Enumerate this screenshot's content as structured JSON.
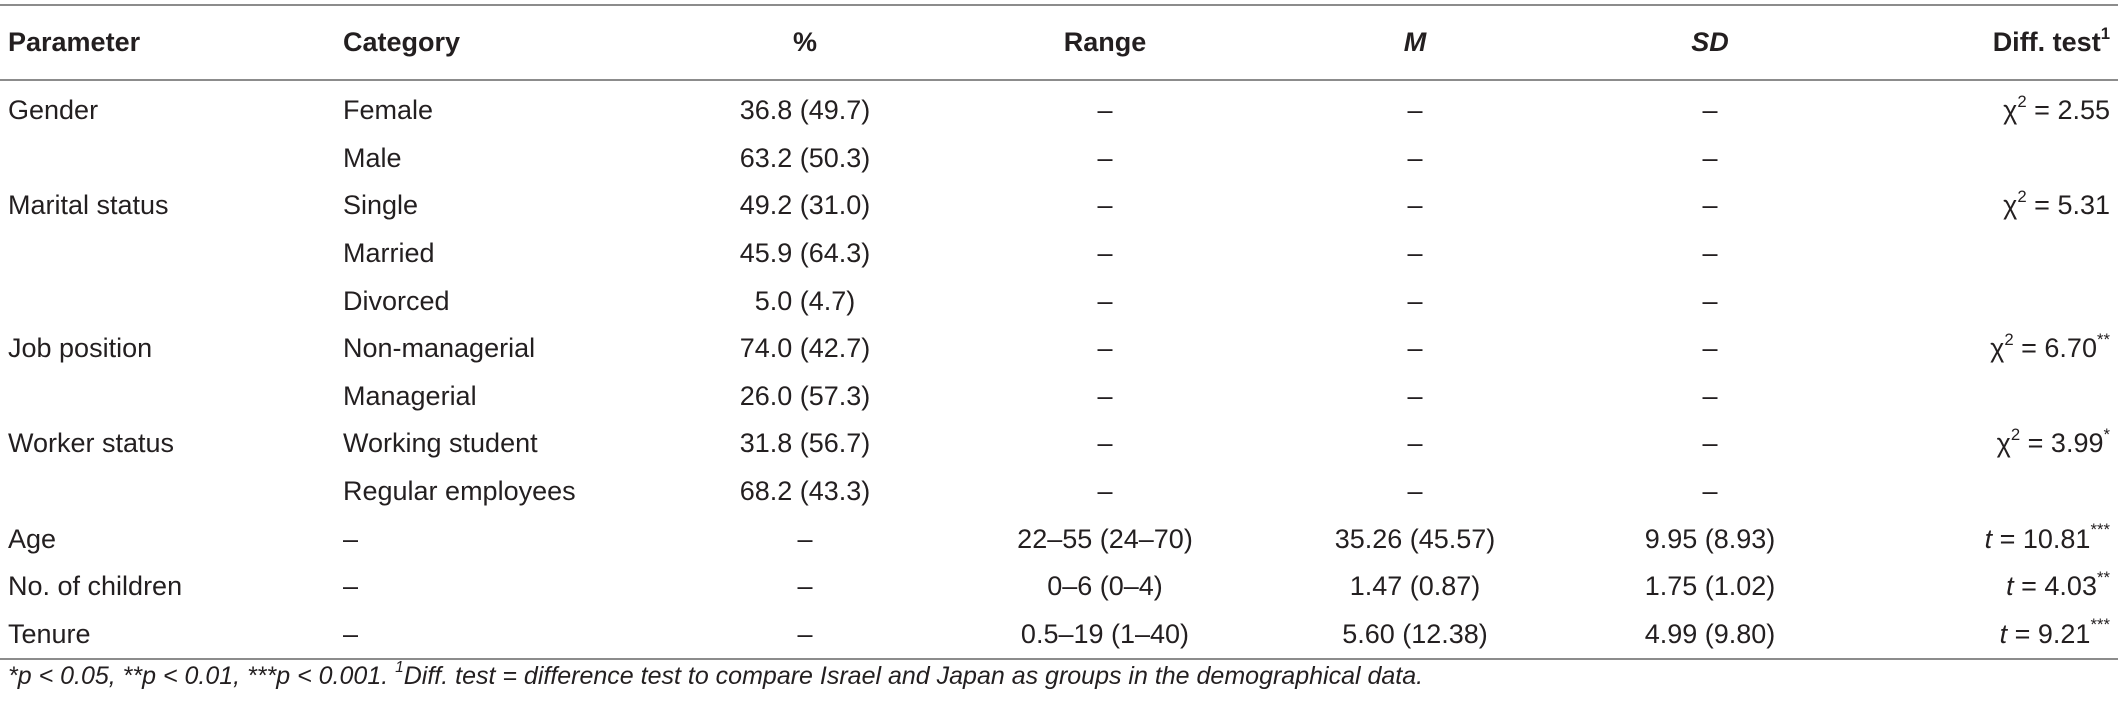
{
  "headers": {
    "parameter": "Parameter",
    "category": "Category",
    "pct": "%",
    "range": "Range",
    "m": "M",
    "sd": "SD",
    "diff": "Diff. test",
    "diff_sup": "1"
  },
  "rows": [
    {
      "parameter": "Gender",
      "category": "Female",
      "pct": "36.8 (49.7)",
      "range": "–",
      "m": "–",
      "sd": "–",
      "diff_stat": "χ",
      "diff_sup": "2",
      "diff_value": " = 2.55",
      "diff_sig": ""
    },
    {
      "parameter": "",
      "category": "Male",
      "pct": "63.2 (50.3)",
      "range": "–",
      "m": "–",
      "sd": "–",
      "diff_stat": "",
      "diff_sup": "",
      "diff_value": "",
      "diff_sig": ""
    },
    {
      "parameter": "Marital status",
      "category": "Single",
      "pct": "49.2 (31.0)",
      "range": "–",
      "m": "–",
      "sd": "–",
      "diff_stat": "χ",
      "diff_sup": "2",
      "diff_value": " = 5.31",
      "diff_sig": ""
    },
    {
      "parameter": "",
      "category": "Married",
      "pct": "45.9 (64.3)",
      "range": "–",
      "m": "–",
      "sd": "–",
      "diff_stat": "",
      "diff_sup": "",
      "diff_value": "",
      "diff_sig": ""
    },
    {
      "parameter": "",
      "category": "Divorced",
      "pct": "5.0 (4.7)",
      "range": "–",
      "m": "–",
      "sd": "–",
      "diff_stat": "",
      "diff_sup": "",
      "diff_value": "",
      "diff_sig": ""
    },
    {
      "parameter": "Job position",
      "category": "Non-managerial",
      "pct": "74.0 (42.7)",
      "range": "–",
      "m": "–",
      "sd": "–",
      "diff_stat": "χ",
      "diff_sup": "2",
      "diff_value": " = 6.70",
      "diff_sig": "**"
    },
    {
      "parameter": "",
      "category": "Managerial",
      "pct": "26.0 (57.3)",
      "range": "–",
      "m": "–",
      "sd": "–",
      "diff_stat": "",
      "diff_sup": "",
      "diff_value": "",
      "diff_sig": ""
    },
    {
      "parameter": "Worker status",
      "category": "Working student",
      "pct": "31.8 (56.7)",
      "range": "–",
      "m": "–",
      "sd": "–",
      "diff_stat": "χ",
      "diff_sup": "2",
      "diff_value": " = 3.99",
      "diff_sig": "*"
    },
    {
      "parameter": "",
      "category": "Regular employees",
      "pct": "68.2 (43.3)",
      "range": "–",
      "m": "–",
      "sd": "–",
      "diff_stat": "",
      "diff_sup": "",
      "diff_value": "",
      "diff_sig": ""
    },
    {
      "parameter": "Age",
      "category": "–",
      "pct": "–",
      "range": "22–55 (24–70)",
      "m": "35.26 (45.57)",
      "sd": "9.95 (8.93)",
      "diff_stat": "t",
      "diff_sup": "",
      "diff_value": " = 10.81",
      "diff_sig": "***"
    },
    {
      "parameter": "No. of children",
      "category": "–",
      "pct": "–",
      "range": "0–6 (0–4)",
      "m": "1.47 (0.87)",
      "sd": "1.75 (1.02)",
      "diff_stat": "t",
      "diff_sup": "",
      "diff_value": " = 4.03",
      "diff_sig": "**"
    },
    {
      "parameter": "Tenure",
      "category": "–",
      "pct": "–",
      "range": "0.5–19 (1–40)",
      "m": "5.60 (12.38)",
      "sd": "4.99 (9.80)",
      "diff_stat": "t",
      "diff_sup": "",
      "diff_value": " = 9.21",
      "diff_sig": "***"
    }
  ],
  "footnote": {
    "sig": "*p < 0.05, **p < 0.01, ***p < 0.001. ",
    "sup": "1",
    "text": "Diff. test = difference test to compare Israel and Japan as groups in the demographical data."
  }
}
